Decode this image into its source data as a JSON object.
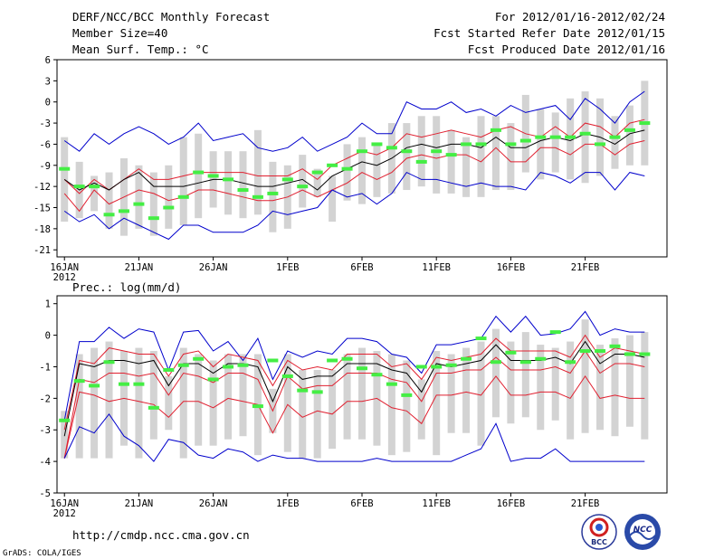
{
  "header": {
    "title": "DERF/NCC/BCC Monthly Forecast",
    "member_size": "Member Size=40",
    "variable": "Mean Surf. Temp.: °C",
    "forecast_period": "For 2012/01/16-2012/02/24",
    "start_refer_date": "Fcst Started Refer Date 2012/01/15",
    "produced_date": "Fcst Produced Date 2012/01/16"
  },
  "footer": {
    "url": "http://cmdp.ncc.cma.gov.cn",
    "grads_credit": "GrADS: COLA/IGES",
    "logo_bcc_text": "BCC",
    "logo_ncc_text": "NCC"
  },
  "colors": {
    "ensemble_bar": "#d3d3d3",
    "member_mark": "#44ee44",
    "mean_line": "#000000",
    "spread_line": "#e02030",
    "extreme_line": "#0000cc"
  },
  "chart_data": [
    {
      "type": "line",
      "title": "Mean Surf. Temp.: °C",
      "x": [
        1,
        2,
        3,
        4,
        5,
        6,
        7,
        8,
        9,
        10,
        11,
        12,
        13,
        14,
        15,
        16,
        17,
        18,
        19,
        20,
        21,
        22,
        23,
        24,
        25,
        26,
        27,
        28,
        29,
        30,
        31,
        32,
        33,
        34,
        35,
        36,
        37,
        38,
        39,
        40
      ],
      "xlim": [
        0.5,
        41.5
      ],
      "ylim": [
        -22,
        6
      ],
      "yticks": [
        6,
        3,
        0,
        -3,
        -6,
        -9,
        -12,
        -15,
        -18,
        -21
      ],
      "xtick_positions": [
        1,
        6,
        11,
        16,
        21,
        26,
        31,
        36
      ],
      "xtick_labels": [
        "16JAN",
        "21JAN",
        "26JAN",
        "1FEB",
        "6FEB",
        "11FEB",
        "16FEB",
        "21FEB"
      ],
      "xtick_year": "2012",
      "series": [
        {
          "name": "ensemble max",
          "values": [
            -5.5,
            -7,
            -4.5,
            -6,
            -4.5,
            -3.5,
            -4.5,
            -6,
            -5,
            -3,
            -5.5,
            -5,
            -4.5,
            -6.5,
            -7,
            -6.5,
            -5,
            -7,
            -6,
            -5,
            -3,
            -4.5,
            -4.5,
            0,
            -1,
            -1,
            0,
            -1.5,
            -1,
            -2,
            -0.5,
            -1.5,
            -1,
            -0.5,
            -2.5,
            0.5,
            -1,
            -3,
            0,
            1.5
          ]
        },
        {
          "name": "mean + spread",
          "values": [
            -11,
            -13,
            -11,
            -12.5,
            -11,
            -9.5,
            -11,
            -11,
            -10.5,
            -10,
            -10,
            -10,
            -10,
            -10.5,
            -10.5,
            -10.5,
            -9.5,
            -11,
            -9,
            -8,
            -7,
            -7.5,
            -6.5,
            -4.5,
            -5,
            -4.5,
            -4,
            -4.5,
            -5,
            -4,
            -3.5,
            -4.5,
            -5,
            -3.5,
            -5,
            -3,
            -3.5,
            -5,
            -3,
            -2.5
          ]
        },
        {
          "name": "ensemble mean",
          "values": [
            -11,
            -12.5,
            -11.5,
            -12.5,
            -11,
            -10,
            -12,
            -12,
            -12,
            -11.5,
            -11,
            -11,
            -11.5,
            -12,
            -12,
            -11.5,
            -11,
            -12.5,
            -10.5,
            -9.5,
            -8.5,
            -9,
            -8,
            -6.5,
            -6,
            -6.5,
            -6,
            -6,
            -6.5,
            -5,
            -6.5,
            -6.5,
            -5.5,
            -5,
            -5.5,
            -4.5,
            -5,
            -6,
            -4.5,
            -4
          ]
        },
        {
          "name": "mean - spread",
          "values": [
            -13,
            -15.5,
            -12.5,
            -14.5,
            -13.5,
            -12.5,
            -13,
            -14,
            -13.5,
            -12.5,
            -12.5,
            -13,
            -13.5,
            -14,
            -14,
            -13.5,
            -12.5,
            -13.5,
            -12.5,
            -11.5,
            -10,
            -11,
            -10,
            -8,
            -7.5,
            -8,
            -7.5,
            -7.5,
            -8.5,
            -6.5,
            -8.5,
            -8.5,
            -6.5,
            -6.5,
            -7.5,
            -6,
            -6,
            -7.5,
            -6,
            -5.5
          ]
        },
        {
          "name": "ensemble min",
          "values": [
            -15.5,
            -17,
            -16,
            -18,
            -16.5,
            -17.5,
            -18.5,
            -19.5,
            -17.5,
            -17.5,
            -18.5,
            -18.5,
            -18.5,
            -17.5,
            -15.5,
            -16,
            -15.5,
            -15,
            -12.5,
            -13.5,
            -13,
            -14.5,
            -13,
            -10,
            -11,
            -11,
            -11.5,
            -12,
            -11.5,
            -12,
            -12,
            -12.5,
            -10,
            -10.5,
            -11.5,
            -10,
            -10,
            -12.5,
            -10,
            -10.5
          ]
        }
      ],
      "box_ranges": [
        [
          -17,
          -5
        ],
        [
          -16.5,
          -8.5
        ],
        [
          -15.5,
          -10.5
        ],
        [
          -18,
          -10
        ],
        [
          -19,
          -8
        ],
        [
          -18,
          -9
        ],
        [
          -19,
          -10
        ],
        [
          -18,
          -9
        ],
        [
          -17.5,
          -5
        ],
        [
          -16.5,
          -4.5
        ],
        [
          -15,
          -7
        ],
        [
          -16,
          -7
        ],
        [
          -16.5,
          -7
        ],
        [
          -16,
          -4
        ],
        [
          -18.5,
          -8.5
        ],
        [
          -18,
          -9
        ],
        [
          -15,
          -7.5
        ],
        [
          -13.5,
          -9.5
        ],
        [
          -17,
          -10.5
        ],
        [
          -14,
          -6
        ],
        [
          -14.5,
          -5
        ],
        [
          -13.5,
          -6
        ],
        [
          -13,
          -3
        ],
        [
          -12.5,
          -3
        ],
        [
          -12,
          -2
        ],
        [
          -13,
          -2
        ],
        [
          -13,
          -4
        ],
        [
          -13.5,
          -5
        ],
        [
          -13.5,
          -2
        ],
        [
          -12.5,
          -2
        ],
        [
          -12.5,
          -3
        ],
        [
          -10,
          1
        ],
        [
          -11,
          -1
        ],
        [
          -10,
          -1.5
        ],
        [
          -11,
          0.5
        ],
        [
          -11.5,
          1.5
        ],
        [
          -10.5,
          0.5
        ],
        [
          -9.5,
          -2
        ],
        [
          -9,
          -0.5
        ],
        [
          -9,
          3
        ]
      ],
      "member_marks": [
        -9.5,
        -12,
        -12,
        -16,
        -15.5,
        -14.5,
        -16.5,
        -15,
        -13.5,
        -10,
        -10.5,
        -11,
        -12.5,
        -13.5,
        -13,
        -11,
        -12,
        -10,
        -9,
        -9.5,
        -7,
        -6,
        -6.5,
        -7,
        -8.5,
        -7,
        -7.5,
        -6,
        -6,
        -4,
        -6,
        -5.5,
        -5,
        -5,
        -5,
        -4.5,
        -6,
        -5,
        -4,
        -3
      ]
    },
    {
      "type": "line",
      "title": "Prec.: log(mm/d)",
      "x": [
        1,
        2,
        3,
        4,
        5,
        6,
        7,
        8,
        9,
        10,
        11,
        12,
        13,
        14,
        15,
        16,
        17,
        18,
        19,
        20,
        21,
        22,
        23,
        24,
        25,
        26,
        27,
        28,
        29,
        30,
        31,
        32,
        33,
        34,
        35,
        36,
        37,
        38,
        39,
        40
      ],
      "xlim": [
        0.5,
        41.5
      ],
      "ylim": [
        -5,
        1.25
      ],
      "yticks": [
        1,
        0,
        -1,
        -2,
        -3,
        -4,
        -5
      ],
      "xtick_positions": [
        1,
        6,
        11,
        16,
        21,
        26,
        31,
        36
      ],
      "xtick_labels": [
        "16JAN",
        "21JAN",
        "26JAN",
        "1FEB",
        "6FEB",
        "11FEB",
        "16FEB",
        "21FEB"
      ],
      "xtick_year": "2012",
      "series": [
        {
          "name": "ensemble max",
          "values": [
            -2.7,
            -0.2,
            -0.2,
            0.25,
            -0.1,
            0.2,
            0.1,
            -1.1,
            0.1,
            0.15,
            -0.5,
            -0.2,
            -0.8,
            -0.1,
            -1.4,
            -0.5,
            -0.7,
            -0.5,
            -0.6,
            -0.1,
            -0.1,
            -0.2,
            -0.6,
            -0.7,
            -1.2,
            -0.3,
            -0.3,
            -0.2,
            -0.1,
            0.6,
            0.1,
            0.6,
            0.0,
            0.05,
            0.2,
            0.75,
            0.0,
            0.2,
            0.1,
            0.1
          ]
        },
        {
          "name": "mean + spread",
          "values": [
            -3.0,
            -0.8,
            -0.9,
            -0.4,
            -0.5,
            -0.6,
            -0.6,
            -1.3,
            -0.6,
            -0.5,
            -1.0,
            -0.6,
            -0.7,
            -0.8,
            -1.6,
            -0.8,
            -1.1,
            -1.0,
            -1.1,
            -0.6,
            -0.6,
            -0.6,
            -1.0,
            -0.9,
            -1.4,
            -0.7,
            -0.8,
            -0.7,
            -0.6,
            -0.1,
            -0.5,
            -0.5,
            -0.5,
            -0.5,
            -0.7,
            0.0,
            -0.7,
            -0.4,
            -0.5,
            -0.6
          ]
        },
        {
          "name": "ensemble mean",
          "values": [
            -3.2,
            -0.9,
            -1.0,
            -0.8,
            -0.8,
            -0.9,
            -0.8,
            -1.6,
            -0.9,
            -0.9,
            -1.2,
            -0.9,
            -0.9,
            -1.0,
            -2.1,
            -1.0,
            -1.4,
            -1.3,
            -1.3,
            -0.9,
            -0.9,
            -0.9,
            -1.1,
            -1.2,
            -1.8,
            -0.9,
            -1.0,
            -0.9,
            -0.8,
            -0.3,
            -0.8,
            -0.8,
            -0.8,
            -0.7,
            -0.9,
            -0.2,
            -0.9,
            -0.6,
            -0.6,
            -0.7
          ]
        },
        {
          "name": "mean - spread",
          "values": [
            -3.9,
            -1.4,
            -1.5,
            -1.2,
            -1.2,
            -1.3,
            -1.2,
            -1.9,
            -1.2,
            -1.3,
            -1.5,
            -1.2,
            -1.2,
            -1.4,
            -2.4,
            -1.3,
            -1.7,
            -1.6,
            -1.6,
            -1.2,
            -1.2,
            -1.2,
            -1.4,
            -1.5,
            -2.1,
            -1.2,
            -1.2,
            -1.1,
            -1.1,
            -0.7,
            -1.1,
            -1.1,
            -1.1,
            -1.0,
            -1.2,
            -0.5,
            -1.2,
            -0.9,
            -0.9,
            -1.0
          ]
        },
        {
          "name": "mean - 2 spread",
          "values": [
            -3.9,
            -1.8,
            -1.9,
            -2.1,
            -2.0,
            -2.1,
            -2.2,
            -2.6,
            -2.1,
            -2.1,
            -2.3,
            -2.0,
            -2.1,
            -2.2,
            -3.1,
            -2.2,
            -2.6,
            -2.4,
            -2.5,
            -2.1,
            -2.1,
            -2.0,
            -2.3,
            -2.4,
            -2.8,
            -1.9,
            -1.9,
            -1.8,
            -1.9,
            -1.3,
            -1.9,
            -1.9,
            -1.8,
            -1.8,
            -2.0,
            -1.3,
            -2.0,
            -1.9,
            -2.0,
            -2.0
          ]
        },
        {
          "name": "ensemble min",
          "values": [
            -3.9,
            -2.9,
            -3.1,
            -2.5,
            -3.2,
            -3.5,
            -4.0,
            -3.3,
            -3.4,
            -3.8,
            -3.9,
            -3.6,
            -3.7,
            -4.0,
            -3.8,
            -3.9,
            -3.9,
            -4.0,
            -4.0,
            -4.0,
            -4.0,
            -3.9,
            -4.0,
            -4.0,
            -4.0,
            -4.0,
            -4.0,
            -3.8,
            -3.6,
            -2.8,
            -4.0,
            -3.9,
            -3.9,
            -3.6,
            -4.0,
            -4.0,
            -4.0,
            -4.0,
            -4.0,
            -4.0
          ]
        }
      ],
      "box_ranges": [
        [
          -3.9,
          -2.4
        ],
        [
          -3.9,
          -0.6
        ],
        [
          -3.9,
          -0.4
        ],
        [
          -3.9,
          -0.2
        ],
        [
          -3.5,
          -0.5
        ],
        [
          -3.9,
          -0.4
        ],
        [
          -3.3,
          -0.5
        ],
        [
          -3.0,
          -1.3
        ],
        [
          -3.9,
          -0.4
        ],
        [
          -3.5,
          -0.6
        ],
        [
          -3.5,
          -0.8
        ],
        [
          -3.3,
          -0.6
        ],
        [
          -3.2,
          -0.6
        ],
        [
          -3.8,
          -0.6
        ],
        [
          -3.1,
          -1.7
        ],
        [
          -3.7,
          -0.6
        ],
        [
          -3.9,
          -1.1
        ],
        [
          -3.9,
          -1.1
        ],
        [
          -3.6,
          -1.1
        ],
        [
          -3.3,
          -0.6
        ],
        [
          -3.3,
          -0.4
        ],
        [
          -3.5,
          -0.5
        ],
        [
          -3.8,
          -0.6
        ],
        [
          -3.7,
          -0.8
        ],
        [
          -3.3,
          -1.4
        ],
        [
          -3.8,
          -0.5
        ],
        [
          -3.1,
          -0.6
        ],
        [
          -3.1,
          -0.4
        ],
        [
          -3.5,
          -0.2
        ],
        [
          -2.6,
          0.2
        ],
        [
          -2.8,
          -0.2
        ],
        [
          -2.6,
          0.1
        ],
        [
          -3.0,
          -0.3
        ],
        [
          -2.7,
          -0.4
        ],
        [
          -3.3,
          -0.2
        ],
        [
          -3.1,
          0.5
        ],
        [
          -3.0,
          -0.3
        ],
        [
          -3.2,
          -0.1
        ],
        [
          -2.9,
          0.0
        ],
        [
          -3.3,
          0.1
        ]
      ],
      "member_marks": [
        -2.7,
        -1.45,
        -1.6,
        -0.85,
        -1.55,
        -1.55,
        -2.3,
        -1.1,
        -0.95,
        -0.75,
        -1.4,
        -1.0,
        -0.95,
        -2.25,
        -0.8,
        -1.3,
        -1.75,
        -1.8,
        -0.8,
        -0.75,
        -1.05,
        -1.25,
        -1.55,
        -1.9,
        -1.0,
        -1.0,
        -0.95,
        -0.75,
        -0.1,
        -0.85,
        -0.55,
        -0.85,
        -0.75,
        0.1,
        -0.85,
        -0.5,
        -0.5,
        -0.35,
        -0.6,
        -0.6
      ]
    }
  ]
}
